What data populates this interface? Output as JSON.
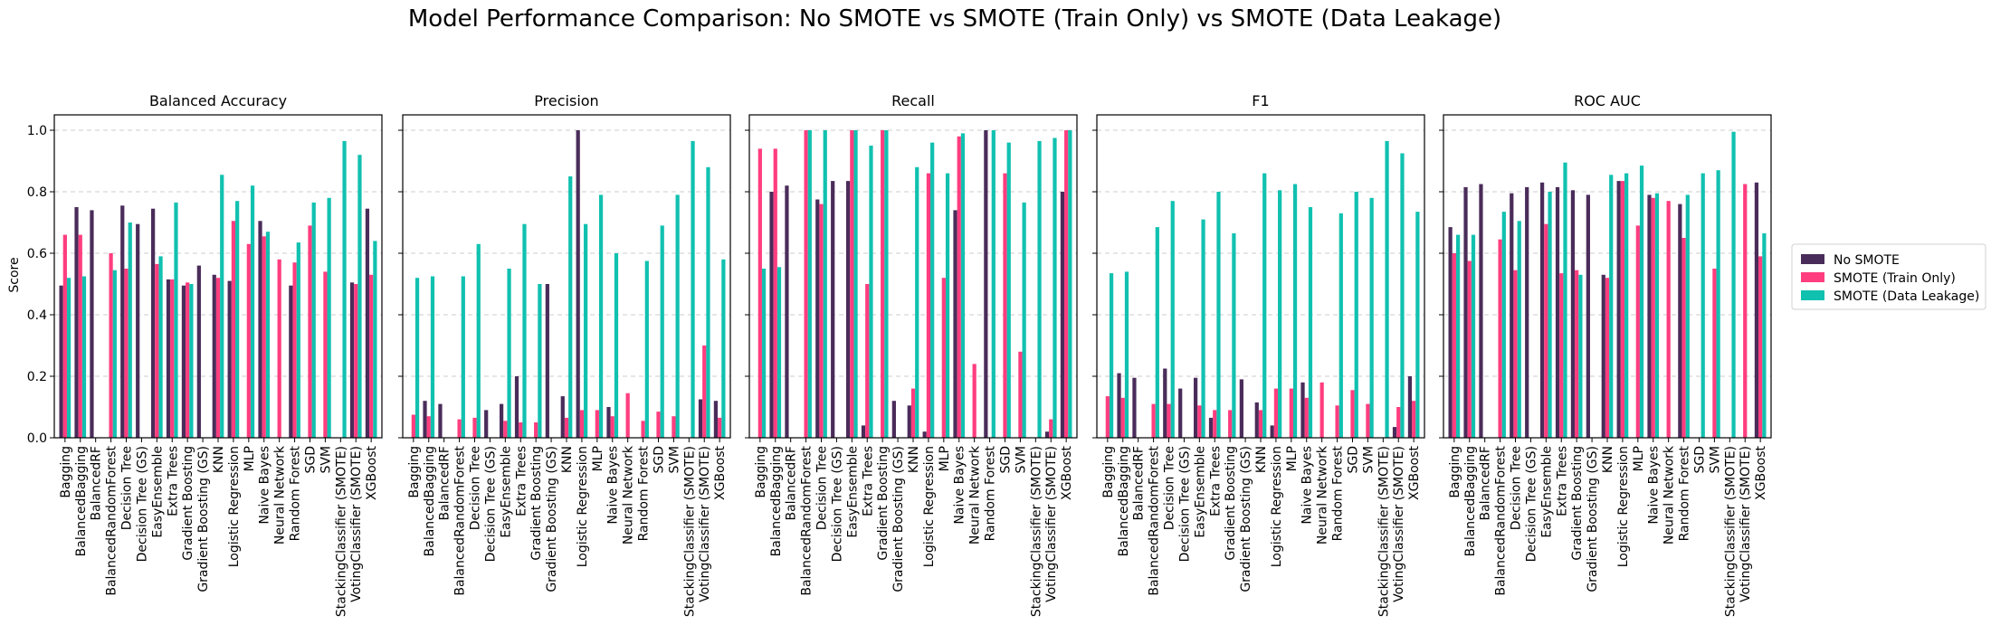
{
  "chart_data": {
    "type": "bar",
    "title": "Model Performance Comparison: No SMOTE vs SMOTE (Train Only) vs SMOTE (Data Leakage)",
    "ylabel": "Score",
    "ylim": [
      0.0,
      1.05
    ],
    "yticks": [
      "0.0",
      "0.2",
      "0.4",
      "0.6",
      "0.8",
      "1.0"
    ],
    "grid": "y-dashed",
    "legend_placement": "right",
    "categories": [
      "Bagging",
      "BalancedBagging",
      "BalancedRF",
      "BalancedRandomForest",
      "Decision Tree",
      "Decision Tree (GS)",
      "EasyEnsemble",
      "Extra Trees",
      "Gradient Boosting",
      "Gradient Boosting (GS)",
      "KNN",
      "Logistic Regression",
      "MLP",
      "Naive Bayes",
      "Neural Network",
      "Random Forest",
      "SGD",
      "SVM",
      "StackingClassifier (SMOTE)",
      "VotingClassifier (SMOTE)",
      "XGBoost"
    ],
    "series_names": [
      "No SMOTE",
      "SMOTE (Train Only)",
      "SMOTE (Data Leakage)"
    ],
    "colors": [
      "#4a2c5a",
      "#ff3d7f",
      "#11c1b0"
    ],
    "panels": [
      {
        "title": "Balanced Accuracy",
        "series": [
          {
            "name": "No SMOTE",
            "values": [
              0.495,
              0.75,
              0.74,
              null,
              0.755,
              0.695,
              0.745,
              0.515,
              0.495,
              0.56,
              0.53,
              0.51,
              null,
              0.705,
              null,
              0.495,
              null,
              null,
              null,
              0.505,
              0.745
            ]
          },
          {
            "name": "SMOTE (Train Only)",
            "values": [
              0.66,
              0.66,
              null,
              0.6,
              0.55,
              null,
              0.565,
              0.515,
              0.505,
              null,
              0.52,
              0.705,
              0.63,
              0.655,
              0.58,
              0.57,
              0.69,
              0.54,
              null,
              0.5,
              0.53
            ]
          },
          {
            "name": "SMOTE (Data Leakage)",
            "values": [
              0.52,
              0.525,
              null,
              0.545,
              0.7,
              null,
              0.59,
              0.765,
              0.5,
              null,
              0.855,
              0.77,
              0.82,
              0.67,
              null,
              0.635,
              0.765,
              0.78,
              0.965,
              0.92,
              0.64
            ]
          }
        ]
      },
      {
        "title": "Precision",
        "series": [
          {
            "name": "No SMOTE",
            "values": [
              null,
              0.12,
              0.11,
              null,
              null,
              0.09,
              0.11,
              0.2,
              null,
              0.5,
              0.135,
              1.0,
              null,
              0.1,
              null,
              null,
              null,
              null,
              null,
              0.125,
              0.12
            ]
          },
          {
            "name": "SMOTE (Train Only)",
            "values": [
              0.075,
              0.07,
              null,
              0.06,
              0.065,
              null,
              0.055,
              0.05,
              0.05,
              null,
              0.065,
              0.09,
              0.09,
              0.07,
              0.145,
              0.055,
              0.085,
              0.07,
              null,
              0.3,
              0.065
            ]
          },
          {
            "name": "SMOTE (Data Leakage)",
            "values": [
              0.52,
              0.525,
              null,
              0.525,
              0.63,
              null,
              0.55,
              0.695,
              0.5,
              null,
              0.85,
              0.695,
              0.79,
              0.6,
              null,
              0.575,
              0.69,
              0.79,
              0.965,
              0.88,
              0.58
            ]
          }
        ]
      },
      {
        "title": "Recall",
        "series": [
          {
            "name": "No SMOTE",
            "values": [
              null,
              0.8,
              0.82,
              null,
              0.775,
              0.835,
              0.835,
              0.04,
              null,
              0.12,
              0.105,
              0.02,
              null,
              0.74,
              null,
              1.0,
              null,
              null,
              null,
              0.02,
              0.8
            ]
          },
          {
            "name": "SMOTE (Train Only)",
            "values": [
              0.94,
              0.94,
              null,
              1.0,
              0.76,
              null,
              1.0,
              0.5,
              1.0,
              null,
              0.16,
              0.86,
              0.52,
              0.98,
              0.24,
              null,
              0.86,
              0.28,
              null,
              0.06,
              1.0
            ]
          },
          {
            "name": "SMOTE (Data Leakage)",
            "values": [
              0.55,
              0.555,
              null,
              1.0,
              1.0,
              null,
              1.0,
              0.95,
              1.0,
              null,
              0.88,
              0.96,
              0.86,
              0.99,
              null,
              1.0,
              0.96,
              0.765,
              0.965,
              0.975,
              1.0
            ]
          }
        ]
      },
      {
        "title": "F1",
        "series": [
          {
            "name": "No SMOTE",
            "values": [
              null,
              0.21,
              0.195,
              null,
              0.225,
              0.16,
              0.195,
              0.065,
              null,
              0.19,
              0.115,
              0.04,
              null,
              0.18,
              null,
              null,
              null,
              null,
              null,
              0.035,
              0.2
            ]
          },
          {
            "name": "SMOTE (Train Only)",
            "values": [
              0.135,
              0.13,
              null,
              0.11,
              0.11,
              null,
              0.105,
              0.09,
              0.09,
              null,
              0.09,
              0.16,
              0.16,
              0.13,
              0.18,
              0.105,
              0.155,
              0.11,
              null,
              0.1,
              0.12
            ]
          },
          {
            "name": "SMOTE (Data Leakage)",
            "values": [
              0.535,
              0.54,
              null,
              0.685,
              0.77,
              null,
              0.71,
              0.8,
              0.665,
              null,
              0.86,
              0.805,
              0.825,
              0.75,
              null,
              0.73,
              0.8,
              0.78,
              0.965,
              0.925,
              0.735
            ]
          }
        ]
      },
      {
        "title": "ROC AUC",
        "series": [
          {
            "name": "No SMOTE",
            "values": [
              0.685,
              0.815,
              0.825,
              null,
              0.795,
              0.815,
              0.83,
              0.815,
              0.805,
              0.79,
              0.53,
              0.835,
              null,
              0.79,
              null,
              0.76,
              null,
              null,
              null,
              null,
              0.83
            ]
          },
          {
            "name": "SMOTE (Train Only)",
            "values": [
              0.6,
              0.575,
              null,
              0.645,
              0.545,
              null,
              0.695,
              0.535,
              0.545,
              null,
              0.52,
              0.835,
              0.69,
              0.78,
              0.77,
              0.65,
              null,
              0.55,
              null,
              0.825,
              0.59
            ]
          },
          {
            "name": "SMOTE (Data Leakage)",
            "values": [
              0.66,
              0.66,
              null,
              0.735,
              0.705,
              null,
              0.8,
              0.895,
              0.53,
              null,
              0.855,
              0.86,
              0.885,
              0.795,
              null,
              0.79,
              0.86,
              0.87,
              0.995,
              null,
              0.665
            ]
          }
        ]
      }
    ]
  }
}
